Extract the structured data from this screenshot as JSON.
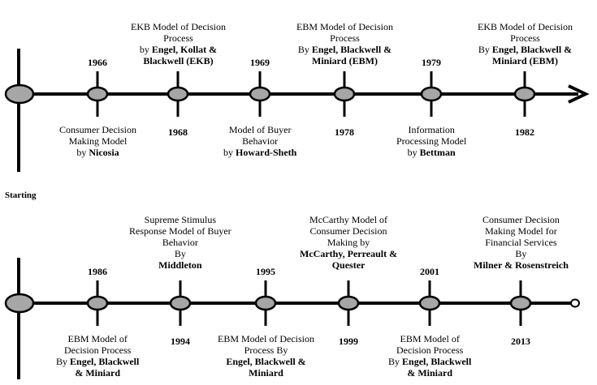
{
  "start_label": "Starting",
  "colors": {
    "node_fill": "#a6a6a6",
    "line": "#000000"
  },
  "events": [
    {
      "year": "1966",
      "lines": [
        [
          "Consumer Decision"
        ],
        [
          "Making Model"
        ],
        [
          "by ",
          "Nicosia"
        ]
      ]
    },
    {
      "year": "1968",
      "lines": [
        [
          "EKB Model of Decision"
        ],
        [
          "Process"
        ],
        [
          "by ",
          "Engel, Kollat &"
        ],
        [
          "",
          "Blackwell (EKB)"
        ]
      ]
    },
    {
      "year": "1969",
      "lines": [
        [
          "Model of Buyer"
        ],
        [
          "Behavior"
        ],
        [
          "by ",
          "Howard-Sheth"
        ]
      ]
    },
    {
      "year": "1978",
      "lines": [
        [
          "EBM Model of Decision"
        ],
        [
          "Process"
        ],
        [
          "By ",
          "Engel, Blackwell &"
        ],
        [
          "",
          "Miniard (EBM)"
        ]
      ]
    },
    {
      "year": "1979",
      "lines": [
        [
          "Information"
        ],
        [
          "Processing Model"
        ],
        [
          "by ",
          "Bettman"
        ]
      ]
    },
    {
      "year": "1982",
      "lines": [
        [
          "EKB Model of Decision"
        ],
        [
          "Process"
        ],
        [
          "By ",
          "Engel, Blackwell &"
        ],
        [
          "",
          "Miniard (EBM)"
        ]
      ]
    },
    {
      "year": "1986",
      "lines": [
        [
          "EBM Model of"
        ],
        [
          "Decision Process"
        ],
        [
          "By ",
          "Engel, Blackwell"
        ],
        [
          "",
          "& Miniard"
        ]
      ]
    },
    {
      "year": "1994",
      "lines": [
        [
          "Supreme Stimulus"
        ],
        [
          "Response Model of Buyer"
        ],
        [
          "Behavior"
        ],
        [
          "By"
        ],
        [
          "",
          "Middleton"
        ]
      ]
    },
    {
      "year": "1995",
      "lines": [
        [
          "EBM Model of Decision"
        ],
        [
          "Process By"
        ],
        [
          "",
          "Engel, Blackwell &"
        ],
        [
          "",
          "Miniard"
        ]
      ]
    },
    {
      "year": "1999",
      "lines": [
        [
          "McCarthy Model of"
        ],
        [
          "Consumer Decision"
        ],
        [
          "Making by"
        ],
        [
          "",
          "McCarthy, Perreault &"
        ],
        [
          "",
          "Quester"
        ]
      ]
    },
    {
      "year": "2001",
      "lines": [
        [
          "EBM Model of"
        ],
        [
          "Decision Process"
        ],
        [
          "By ",
          "Engel, Blackwell"
        ],
        [
          "",
          "& Miniard"
        ]
      ]
    },
    {
      "year": "2013",
      "lines": [
        [
          "Consumer Decision"
        ],
        [
          "Making Model for"
        ],
        [
          "Financial Services"
        ],
        [
          "By"
        ],
        [
          "",
          "Milner & Rosenstreich"
        ]
      ]
    }
  ]
}
